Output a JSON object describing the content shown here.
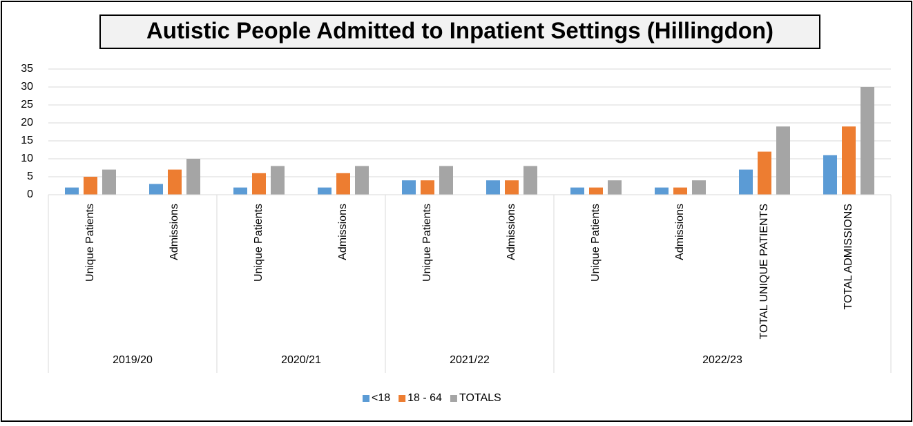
{
  "chart_data": {
    "type": "bar",
    "title": "Autistic People Admitted to Inpatient Settings (Hillingdon)",
    "categories": [
      "Unique Patients",
      "Admissions",
      "Unique Patients",
      "Admissions",
      "Unique Patients",
      "Admissions",
      "Unique Patients",
      "Admissions",
      "TOTAL UNIQUE PATIENTS",
      "TOTAL ADMISSIONS"
    ],
    "groups": [
      {
        "label": "2019/20",
        "count": 2
      },
      {
        "label": "2020/21",
        "count": 2
      },
      {
        "label": "2021/22",
        "count": 2
      },
      {
        "label": "2022/23",
        "count": 4
      }
    ],
    "series": [
      {
        "name": "<18",
        "color": "#5b9bd5",
        "values": [
          2,
          3,
          2,
          2,
          4,
          4,
          2,
          2,
          7,
          11
        ]
      },
      {
        "name": "18 - 64",
        "color": "#ed7d31",
        "values": [
          5,
          7,
          6,
          6,
          4,
          4,
          2,
          2,
          12,
          19
        ]
      },
      {
        "name": "TOTALS",
        "color": "#a5a5a5",
        "values": [
          7,
          10,
          8,
          8,
          8,
          8,
          4,
          4,
          19,
          30
        ]
      }
    ],
    "ylim": [
      0,
      35
    ],
    "yticks": [
      0,
      5,
      10,
      15,
      20,
      25,
      30,
      35
    ],
    "grid": true,
    "legend": "bottom"
  }
}
